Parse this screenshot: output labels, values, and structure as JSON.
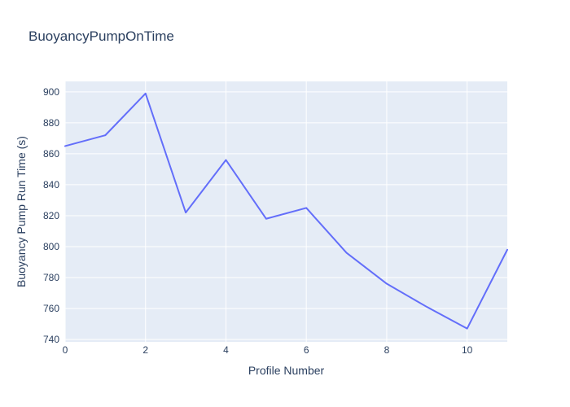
{
  "title": "BuoyancyPumpOnTime",
  "colors": {
    "accent_line": "#636EFA",
    "plot_background": "#E5ECF6",
    "paper_background": "#FFFFFF",
    "grid": "#FFFFFF",
    "text": "#2A3F5F"
  },
  "chart_data": {
    "type": "line",
    "title": "BuoyancyPumpOnTime",
    "xlabel": "Profile Number",
    "ylabel": "Buoyancy Pump Run Time (s)",
    "x": [
      0,
      1,
      2,
      3,
      4,
      5,
      6,
      7,
      8,
      9,
      10,
      11
    ],
    "y": [
      865,
      872,
      899,
      822,
      856,
      818,
      825,
      796,
      776,
      761,
      747,
      798
    ],
    "series_name": "BuoyancyPumpOnTime",
    "xticks": [
      0,
      2,
      4,
      6,
      8,
      10
    ],
    "yticks": [
      740,
      760,
      780,
      800,
      820,
      840,
      860,
      880,
      900
    ],
    "xlim": [
      0,
      11
    ],
    "ylim": [
      738.4,
      906.8
    ],
    "grid": true,
    "legend_visible": false,
    "line_color": "#636EFA",
    "line_width": 2,
    "plot_bg": "#E5ECF6",
    "grid_color": "#FFFFFF",
    "text_color": "#2A3F5F"
  }
}
